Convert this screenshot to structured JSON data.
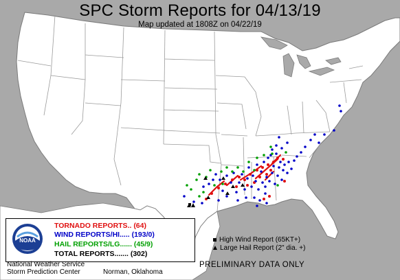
{
  "header": {
    "title": "SPC Storm Reports for 04/13/19",
    "subtitle": "Map updated at 1808Z on 04/22/19"
  },
  "legend": {
    "logo_text": "NOAA",
    "tornado": "TORNADO REPORTS.. (64)",
    "wind": "WIND REPORTS/HI..... (193/0)",
    "hail": "HAIL REPORTS/LG...... (45/9)",
    "total": "TOTAL REPORTS....... (302)"
  },
  "footer": {
    "agency": "National Weather Service",
    "center": "Storm Prediction Center",
    "location": "Norman, Oklahoma"
  },
  "key": {
    "high_wind": "High Wind Report (65KT+)",
    "large_hail": "Large Hail Report (2\" dia. +)"
  },
  "status": "PRELIMINARY DATA ONLY",
  "colors": {
    "tornado": "#e01010",
    "wind": "#0000c8",
    "hail": "#00a000",
    "land": "#ffffff",
    "water": "#a9a9a9",
    "borders": "#9a9a9a"
  },
  "icons": {
    "logo": "noaa-logo",
    "high_wind": "square-marker-icon",
    "large_hail": "triangle-marker-icon"
  }
}
